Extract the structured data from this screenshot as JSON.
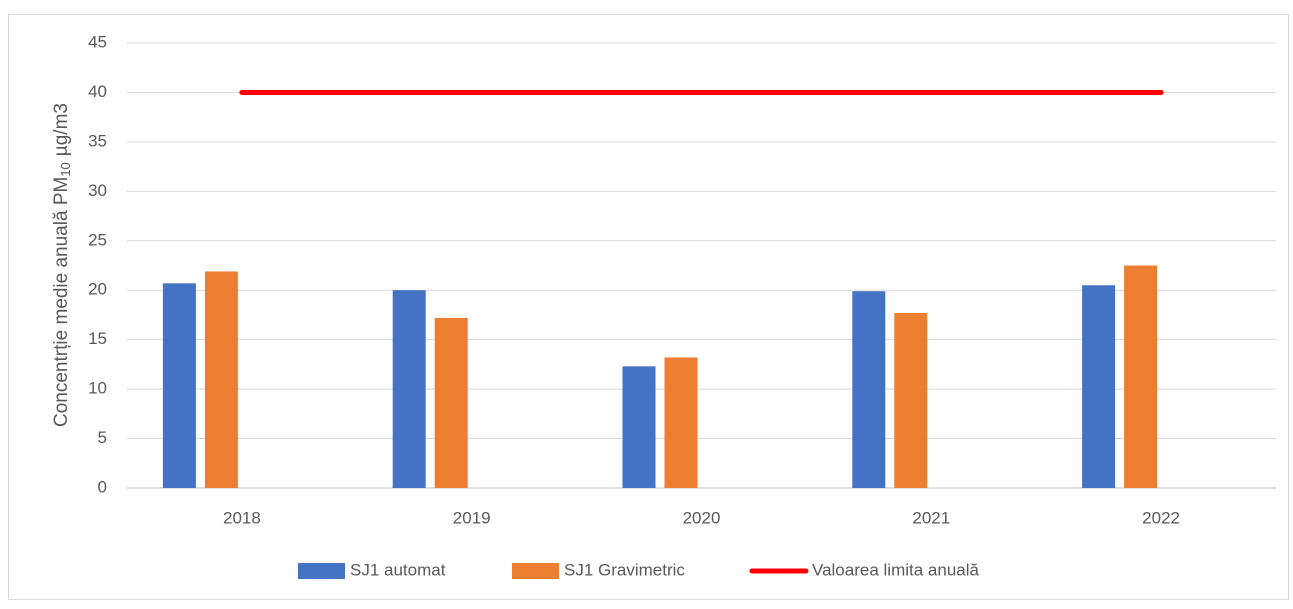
{
  "chart_data": {
    "type": "bar",
    "y_label": {
      "text": "Concentrție medie anuală PM",
      "subscript": "10",
      "unit": "µg/m3"
    },
    "categories": [
      "2018",
      "2019",
      "2020",
      "2021",
      "2022"
    ],
    "series": [
      {
        "name": "SJ1 automat",
        "color": "#4472c4",
        "type": "bar",
        "values": [
          20.7,
          20.0,
          12.3,
          19.9,
          20.5
        ]
      },
      {
        "name": "SJ1 Gravimetric",
        "color": "#ed7d31",
        "type": "bar",
        "values": [
          21.9,
          17.2,
          13.2,
          17.7,
          22.5
        ]
      },
      {
        "name": "Valoarea limita anuală",
        "color": "#ff0000",
        "type": "line",
        "values": [
          40,
          40,
          40,
          40,
          40
        ]
      }
    ],
    "ylim": [
      0,
      45
    ],
    "yticks": [
      0,
      5,
      10,
      15,
      20,
      25,
      30,
      35,
      40,
      45
    ],
    "grid": true,
    "legend": "bottom"
  }
}
